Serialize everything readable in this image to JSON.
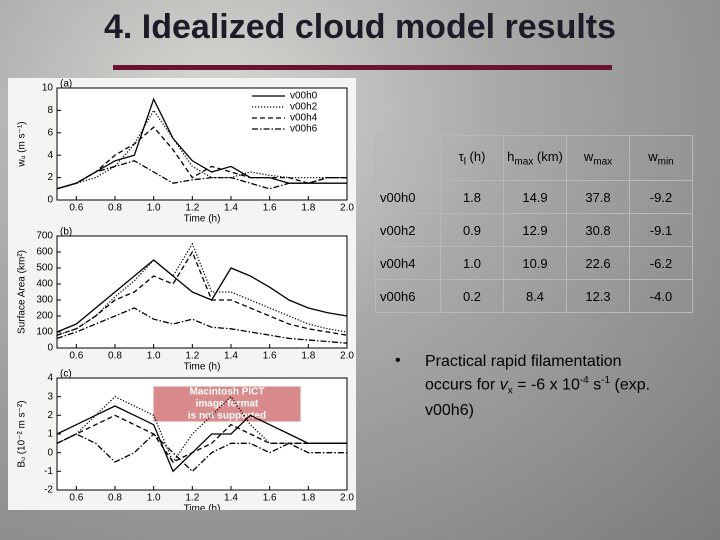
{
  "header": {
    "title": "4. Idealized cloud model results"
  },
  "chart_data": [
    {
      "type": "line",
      "panel": "(a)",
      "xlabel": "Time (h)",
      "ylabel": "wᵤ (m s⁻¹)",
      "x": [
        0.5,
        0.6,
        0.7,
        0.8,
        0.9,
        1.0,
        1.1,
        1.2,
        1.3,
        1.4,
        1.5,
        1.6,
        1.7,
        1.8,
        1.9,
        2.0
      ],
      "xlim": [
        0.5,
        2.0
      ],
      "ylim": [
        0,
        10
      ],
      "xticks": [
        0.6,
        0.8,
        {
          "value": 1.0,
          "label": "1.0"
        },
        1.2,
        1.4,
        1.6,
        1.8,
        {
          "value": 2.0,
          "label": "2.0"
        }
      ],
      "yticks": [
        0,
        2,
        4,
        6,
        8,
        10
      ],
      "legend": "upper right",
      "series": [
        {
          "name": "v00h0",
          "color": "#000000",
          "dash": "solid",
          "values": [
            1,
            1.5,
            2.5,
            3.5,
            4,
            9,
            5.5,
            3.5,
            2.5,
            3,
            2,
            2,
            1.5,
            1.5,
            1.5,
            1.5
          ]
        },
        {
          "name": "v00h2",
          "color": "#000000",
          "dash": "dotted",
          "values": [
            1,
            1.5,
            2,
            3,
            5,
            8,
            5.5,
            3,
            2,
            2,
            2.5,
            2.2,
            2,
            2,
            2,
            2
          ]
        },
        {
          "name": "v00h4",
          "color": "#000000",
          "dash": "dashed",
          "values": [
            1,
            1.5,
            2.5,
            4,
            5,
            6.5,
            4.5,
            2,
            3,
            2.5,
            2,
            2,
            2,
            1.5,
            2,
            2
          ]
        },
        {
          "name": "v00h6",
          "color": "#000000",
          "dash": "dashdot",
          "values": [
            1,
            1.5,
            2.5,
            3,
            3.5,
            2.5,
            1.5,
            1.8,
            2,
            2,
            1.5,
            1,
            1.5,
            1.5,
            2,
            2
          ]
        }
      ]
    },
    {
      "type": "line",
      "panel": "(b)",
      "xlabel": "Time (h)",
      "ylabel": "Surface Area (km²)",
      "x": [
        0.5,
        0.6,
        0.7,
        0.8,
        0.9,
        1.0,
        1.1,
        1.2,
        1.3,
        1.4,
        1.5,
        1.6,
        1.7,
        1.8,
        1.9,
        2.0
      ],
      "xlim": [
        0.5,
        2.0
      ],
      "ylim": [
        0,
        700
      ],
      "xticks": [
        0.6,
        0.8,
        {
          "value": 1.0,
          "label": "1.0"
        },
        1.2,
        1.4,
        1.6,
        1.8,
        {
          "value": 2.0,
          "label": "2.0"
        }
      ],
      "yticks": [
        0,
        100,
        200,
        300,
        400,
        500,
        600,
        700
      ],
      "series": [
        {
          "color": "#000000",
          "dash": "solid",
          "values": [
            100,
            150,
            250,
            350,
            450,
            550,
            450,
            350,
            300,
            500,
            450,
            380,
            300,
            250,
            220,
            200
          ]
        },
        {
          "color": "#000000",
          "dash": "dotted",
          "values": [
            80,
            120,
            200,
            320,
            420,
            550,
            450,
            650,
            350,
            350,
            300,
            250,
            200,
            150,
            120,
            100
          ]
        },
        {
          "color": "#000000",
          "dash": "dashed",
          "values": [
            80,
            120,
            200,
            300,
            350,
            450,
            400,
            600,
            300,
            300,
            250,
            200,
            150,
            120,
            100,
            80
          ]
        },
        {
          "color": "#000000",
          "dash": "dashdot",
          "values": [
            60,
            100,
            150,
            200,
            250,
            180,
            150,
            180,
            130,
            120,
            100,
            80,
            60,
            50,
            40,
            30
          ]
        }
      ]
    },
    {
      "type": "line",
      "panel": "(c)",
      "xlabel": "Time (h)",
      "ylabel": "Bᵤ (10⁻² m s⁻²)",
      "x": [
        0.5,
        0.6,
        0.7,
        0.8,
        0.9,
        1.0,
        1.1,
        1.2,
        1.3,
        1.4,
        1.5,
        1.6,
        1.7,
        1.8,
        1.9,
        2.0
      ],
      "xlim": [
        0.5,
        2.0
      ],
      "ylim": [
        -2,
        4
      ],
      "xticks": [
        0.6,
        0.8,
        {
          "value": 1.0,
          "label": "1.0"
        },
        1.2,
        1.4,
        1.6,
        1.8,
        {
          "value": 2.0,
          "label": "2.0"
        }
      ],
      "yticks": [
        -2,
        -1,
        0,
        1,
        2,
        3,
        4
      ],
      "notice": [
        "Macintosh PICT",
        "image format",
        "is not supported"
      ],
      "series": [
        {
          "color": "#000000",
          "dash": "solid",
          "values": [
            1,
            1.5,
            2,
            2.5,
            2,
            1.5,
            -1,
            0,
            1,
            1,
            2,
            1.5,
            1,
            0.5,
            0.5,
            0.5
          ]
        },
        {
          "color": "#000000",
          "dash": "dotted",
          "values": [
            0.5,
            1,
            2,
            3,
            2.5,
            2,
            -0.5,
            1,
            2,
            3,
            1.5,
            0.5,
            0.5,
            0.5,
            0.5,
            0.5
          ]
        },
        {
          "color": "#000000",
          "dash": "dashed",
          "values": [
            0.5,
            1,
            1.5,
            2,
            1.5,
            1,
            -0.5,
            0,
            0.5,
            1.5,
            1,
            0.5,
            0.5,
            0.5,
            0.5,
            0.5
          ]
        },
        {
          "color": "#000000",
          "dash": "dashdot",
          "values": [
            0.5,
            1,
            0.5,
            -0.5,
            0,
            1,
            0,
            -1,
            0,
            0.5,
            0.5,
            0,
            0.5,
            0,
            0,
            0
          ]
        }
      ]
    }
  ],
  "table": {
    "header": [
      {
        "main": "τ",
        "sub": "l",
        "rest": " (h)"
      },
      {
        "main": "h",
        "sub": "max",
        "rest": " (km)"
      },
      {
        "main": "w",
        "sub": "max",
        "rest": ""
      },
      {
        "main": "w",
        "sub": "min",
        "rest": ""
      }
    ],
    "rows": [
      [
        "v00h0",
        "1.8",
        "14.9",
        "37.8",
        "-9.2"
      ],
      [
        "v00h2",
        "0.9",
        "12.9",
        "30.8",
        "-9.1"
      ],
      [
        "v00h4",
        "1.0",
        "10.9",
        "22.6",
        "-6.2"
      ],
      [
        "v00h6",
        "0.2",
        "8.4",
        "12.3",
        "-4.0"
      ]
    ]
  },
  "bullet": {
    "marker": "•",
    "parts": [
      "Practical rapid filamentation occurs for ",
      "v",
      "x",
      " = -6 x 10",
      "-4",
      " s",
      "-1",
      " (exp. v00h6)"
    ]
  }
}
